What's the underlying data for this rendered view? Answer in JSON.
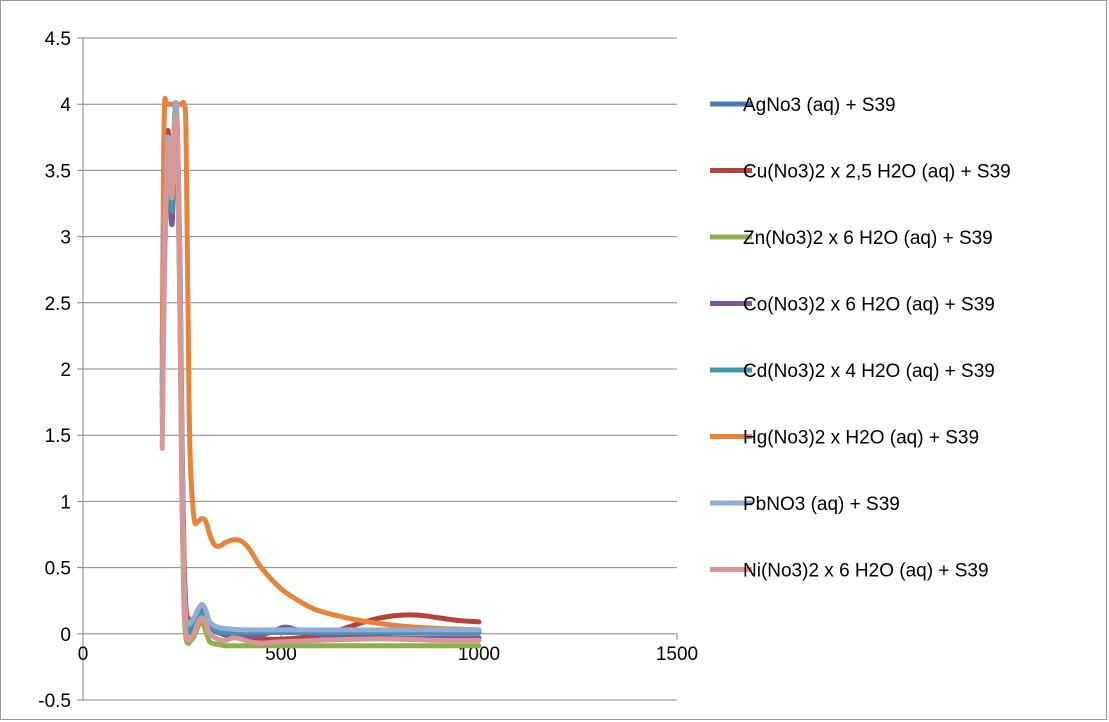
{
  "chart_data": {
    "type": "line",
    "title": "",
    "xlabel": "",
    "ylabel": "",
    "xlim": [
      0,
      1500
    ],
    "ylim": [
      -0.5,
      4.5
    ],
    "x_ticks": [
      0,
      500,
      1000,
      1500
    ],
    "x_tick_labels": [
      "0",
      "500",
      "1000",
      "1500"
    ],
    "y_ticks": [
      -0.5,
      0,
      0.5,
      1,
      1.5,
      2,
      2.5,
      3,
      3.5,
      4,
      4.5
    ],
    "y_tick_labels": [
      "-0.5",
      "0",
      "0.5",
      "1",
      "1.5",
      "2",
      "2.5",
      "3",
      "3.5",
      "4",
      "4.5"
    ],
    "grid": "horizontal",
    "legend_position": "right",
    "series": [
      {
        "name": "AgNo3 (aq) + S39",
        "color": "#4a7ab5",
        "x": [
          200,
          205,
          210,
          215,
          220,
          225,
          230,
          235,
          240,
          245,
          250,
          255,
          260,
          265,
          270,
          280,
          290,
          300,
          310,
          320,
          340,
          360,
          380,
          400,
          450,
          500,
          550,
          600,
          700,
          800,
          900,
          1000
        ],
        "y": [
          2.2,
          3.0,
          3.4,
          3.7,
          3.5,
          3.3,
          3.8,
          4.0,
          3.5,
          2.5,
          1.2,
          0.4,
          0.12,
          0.06,
          0.05,
          0.08,
          0.14,
          0.18,
          0.15,
          0.08,
          0.04,
          0.03,
          0.03,
          0.03,
          0.02,
          0.02,
          0.02,
          0.02,
          0.02,
          0.02,
          0.02,
          0.02
        ]
      },
      {
        "name": "Cu(No3)2 x 2,5 H2O (aq) + S39",
        "color": "#b5403c",
        "x": [
          200,
          205,
          210,
          215,
          220,
          225,
          230,
          235,
          240,
          245,
          250,
          255,
          260,
          265,
          270,
          280,
          290,
          300,
          310,
          320,
          340,
          360,
          380,
          400,
          450,
          500,
          550,
          600,
          650,
          700,
          750,
          800,
          850,
          900,
          950,
          1000
        ],
        "y": [
          1.8,
          2.9,
          3.5,
          3.8,
          3.4,
          3.2,
          3.7,
          4.0,
          3.6,
          2.8,
          1.5,
          0.6,
          0.2,
          0.12,
          0.1,
          0.12,
          0.16,
          0.18,
          0.15,
          0.08,
          0.02,
          -0.01,
          -0.02,
          -0.03,
          -0.04,
          -0.04,
          -0.03,
          -0.01,
          0.03,
          0.08,
          0.12,
          0.14,
          0.14,
          0.12,
          0.1,
          0.09
        ]
      },
      {
        "name": " Zn(No3)2 x 6 H2O (aq) + S39",
        "color": "#8db04e",
        "x": [
          200,
          205,
          210,
          215,
          220,
          225,
          230,
          235,
          240,
          245,
          250,
          255,
          260,
          265,
          270,
          280,
          290,
          300,
          310,
          320,
          340,
          360,
          400,
          500,
          600,
          700,
          800,
          900,
          1000
        ],
        "y": [
          1.9,
          2.8,
          3.3,
          3.6,
          3.3,
          3.1,
          3.6,
          3.9,
          3.4,
          2.4,
          1.0,
          0.2,
          -0.03,
          -0.07,
          -0.06,
          -0.02,
          0.05,
          0.1,
          0.02,
          -0.06,
          -0.08,
          -0.09,
          -0.09,
          -0.09,
          -0.09,
          -0.09,
          -0.09,
          -0.09,
          -0.09
        ]
      },
      {
        "name": "Co(No3)2 x 6 H2O (aq) + S39",
        "color": "#7a5b9c",
        "x": [
          200,
          205,
          210,
          215,
          220,
          225,
          230,
          235,
          240,
          245,
          250,
          255,
          260,
          265,
          270,
          280,
          290,
          300,
          310,
          320,
          340,
          360,
          380,
          400,
          450,
          480,
          510,
          540,
          580,
          650,
          700,
          800,
          900,
          1000
        ],
        "y": [
          1.7,
          2.7,
          3.3,
          3.6,
          3.3,
          3.1,
          3.6,
          3.95,
          3.5,
          2.5,
          1.2,
          0.35,
          0.08,
          0.02,
          0.01,
          0.05,
          0.12,
          0.16,
          0.12,
          0.05,
          0.01,
          0.0,
          -0.01,
          -0.02,
          -0.01,
          0.02,
          0.05,
          0.03,
          0.0,
          -0.02,
          -0.02,
          -0.03,
          -0.03,
          -0.03
        ]
      },
      {
        "name": "Cd(No3)2 x 4 H2O (aq) + S39",
        "color": "#3f97ad",
        "x": [
          200,
          205,
          210,
          215,
          220,
          225,
          230,
          235,
          240,
          245,
          250,
          255,
          260,
          265,
          270,
          280,
          290,
          300,
          310,
          320,
          340,
          360,
          400,
          500,
          600,
          700,
          800,
          900,
          1000
        ],
        "y": [
          1.9,
          2.9,
          3.4,
          3.7,
          3.4,
          3.2,
          3.7,
          4.0,
          3.5,
          2.5,
          1.1,
          0.3,
          0.06,
          0.02,
          0.02,
          0.06,
          0.12,
          0.16,
          0.12,
          0.05,
          0.02,
          0.01,
          0.01,
          0.01,
          0.01,
          0.01,
          0.01,
          0.01,
          0.01
        ]
      },
      {
        "name": "Hg(No3)2 x H2O (aq) + S39",
        "color": "#e8843a",
        "x": [
          200,
          203,
          206,
          210,
          215,
          220,
          225,
          230,
          235,
          240,
          245,
          250,
          255,
          260,
          265,
          270,
          280,
          290,
          300,
          310,
          320,
          330,
          340,
          350,
          360,
          380,
          400,
          420,
          450,
          500,
          550,
          600,
          700,
          800,
          900,
          1000
        ],
        "y": [
          2.0,
          3.4,
          4.0,
          4.0,
          4.0,
          4.0,
          4.0,
          4.0,
          4.0,
          4.0,
          4.0,
          4.0,
          4.0,
          3.8,
          2.5,
          1.4,
          0.88,
          0.85,
          0.87,
          0.85,
          0.75,
          0.68,
          0.66,
          0.67,
          0.69,
          0.71,
          0.7,
          0.64,
          0.5,
          0.34,
          0.24,
          0.17,
          0.1,
          0.06,
          0.04,
          0.03
        ]
      },
      {
        "name": "PbNO3 (aq) + S39",
        "color": "#93acd6",
        "x": [
          200,
          205,
          210,
          215,
          220,
          225,
          230,
          235,
          240,
          245,
          250,
          255,
          260,
          265,
          270,
          280,
          290,
          300,
          310,
          320,
          340,
          360,
          400,
          500,
          600,
          700,
          800,
          900,
          1000
        ],
        "y": [
          1.6,
          2.8,
          3.4,
          3.75,
          3.5,
          3.3,
          3.8,
          4.0,
          3.6,
          2.7,
          1.4,
          0.45,
          0.12,
          0.07,
          0.08,
          0.12,
          0.18,
          0.22,
          0.18,
          0.09,
          0.05,
          0.04,
          0.03,
          0.03,
          0.03,
          0.03,
          0.03,
          0.03,
          0.03
        ]
      },
      {
        "name": "Ni(No3)2 x 6 H2O (aq) + S39",
        "color": "#d99696",
        "x": [
          200,
          205,
          210,
          215,
          220,
          225,
          230,
          235,
          240,
          245,
          250,
          255,
          260,
          265,
          270,
          280,
          290,
          300,
          310,
          320,
          340,
          360,
          380,
          400,
          420,
          450,
          500,
          600,
          700,
          800,
          900,
          1000
        ],
        "y": [
          1.4,
          2.6,
          3.3,
          3.7,
          3.5,
          3.3,
          3.7,
          3.9,
          3.4,
          2.4,
          1.0,
          0.25,
          0.0,
          -0.04,
          -0.04,
          0.0,
          0.08,
          0.12,
          0.08,
          0.0,
          -0.04,
          -0.05,
          -0.03,
          -0.04,
          -0.06,
          -0.07,
          -0.06,
          -0.05,
          -0.04,
          -0.04,
          -0.05,
          -0.05
        ]
      }
    ]
  }
}
